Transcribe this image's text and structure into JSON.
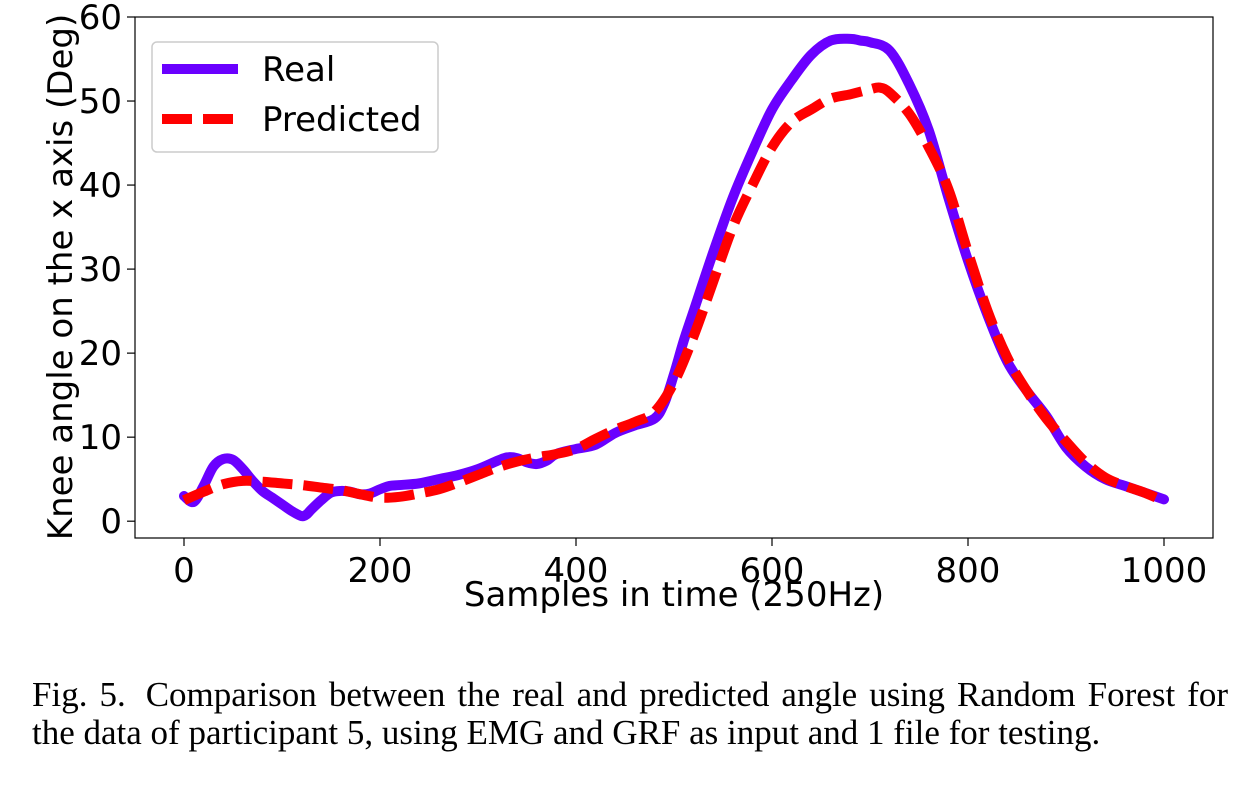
{
  "chart_data": {
    "type": "line",
    "title": "",
    "xlabel": "Samples in time (250Hz)",
    "ylabel": "Knee angle on the x axis (Deg)",
    "xlim": [
      -50,
      1050
    ],
    "ylim": [
      -2,
      60
    ],
    "xticks": [
      0,
      200,
      400,
      600,
      800,
      1000
    ],
    "yticks": [
      0,
      10,
      20,
      30,
      40,
      50,
      60
    ],
    "legend_position": "top-left",
    "series": [
      {
        "name": "Real",
        "color": "#6a00ff",
        "style": "solid",
        "x": [
          0,
          10,
          20,
          30,
          40,
          50,
          60,
          70,
          80,
          90,
          100,
          110,
          120,
          125,
          130,
          140,
          150,
          160,
          170,
          180,
          190,
          200,
          210,
          220,
          240,
          260,
          280,
          300,
          320,
          330,
          340,
          350,
          360,
          370,
          380,
          400,
          420,
          440,
          460,
          480,
          490,
          500,
          510,
          520,
          540,
          560,
          580,
          600,
          620,
          640,
          660,
          680,
          690,
          700,
          720,
          740,
          760,
          780,
          800,
          820,
          840,
          860,
          880,
          900,
          920,
          940,
          960,
          980,
          1000
        ],
        "values": [
          3,
          2.3,
          4.2,
          6.5,
          7.4,
          7.3,
          6.2,
          4.8,
          3.6,
          2.8,
          2,
          1.2,
          0.6,
          0.8,
          1.4,
          2.5,
          3.4,
          3.6,
          3.5,
          3.2,
          3.3,
          3.8,
          4.2,
          4.3,
          4.5,
          5,
          5.5,
          6.2,
          7.2,
          7.6,
          7.5,
          7,
          6.8,
          7.2,
          8,
          8.6,
          9.1,
          10.5,
          11.4,
          12.2,
          14,
          17.5,
          21.5,
          25,
          32,
          38.5,
          44,
          49,
          52.5,
          55.5,
          57.2,
          57.4,
          57.2,
          57,
          56,
          52,
          46.5,
          38.5,
          31,
          24.5,
          19,
          15.5,
          12.5,
          8.8,
          6.5,
          5,
          4.2,
          3.4,
          2.6
        ]
      },
      {
        "name": "Predicted",
        "color": "#ff0000",
        "style": "dashed",
        "x": [
          0,
          20,
          40,
          60,
          80,
          100,
          120,
          140,
          160,
          180,
          200,
          220,
          240,
          260,
          280,
          300,
          320,
          340,
          360,
          380,
          400,
          420,
          440,
          460,
          480,
          500,
          520,
          540,
          560,
          580,
          600,
          620,
          640,
          660,
          680,
          700,
          710,
          720,
          740,
          760,
          780,
          800,
          820,
          840,
          860,
          880,
          900,
          920,
          940,
          960,
          980,
          1000
        ],
        "values": [
          2.5,
          3.5,
          4.4,
          4.8,
          4.7,
          4.5,
          4.3,
          4,
          3.7,
          3.2,
          2.8,
          2.9,
          3.3,
          3.8,
          4.6,
          5.5,
          6.4,
          7.1,
          7.6,
          8,
          8.6,
          9.8,
          10.9,
          11.8,
          13,
          16.5,
          22,
          28.5,
          35,
          40,
          44.5,
          47.5,
          49,
          50.3,
          50.8,
          51.4,
          51.6,
          51,
          48.5,
          44.5,
          39.5,
          32,
          25,
          19.5,
          15.5,
          12.2,
          9.5,
          7,
          5.2,
          4.2,
          3.4,
          2.4
        ]
      }
    ]
  },
  "caption": {
    "label": "Fig. 5.",
    "text": "Comparison between the real and predicted angle using Random Forest for the data of participant 5, using EMG and GRF as input and 1 file for testing."
  }
}
